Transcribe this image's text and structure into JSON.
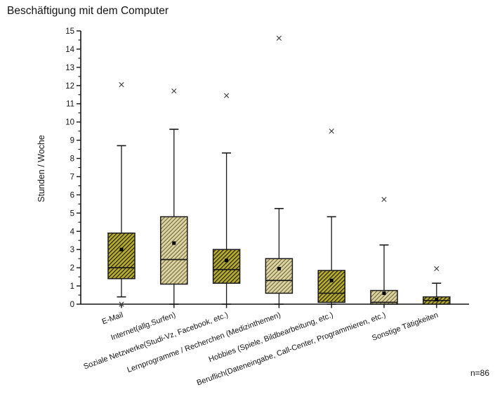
{
  "title": "Beschäftigung mit dem Computer",
  "n_label": "n=86",
  "chart_data": {
    "type": "boxplot",
    "title": "Beschäftigung mit dem Computer",
    "xlabel": "",
    "ylabel": "Stunden / Woche",
    "ylim": [
      0,
      15
    ],
    "y_major_step": 1,
    "y_minor_step": 0.5,
    "y_ticks": [
      0,
      1,
      2,
      3,
      4,
      5,
      6,
      7,
      8,
      9,
      10,
      11,
      12,
      13,
      14,
      15
    ],
    "grid": false,
    "legend": "none",
    "n_label": "n=86",
    "mean_marker": "filled-square-icon",
    "outlier_marker": "x-cross-icon",
    "categories": [
      "E-Mail",
      "Internet(allg.Surfen)",
      "Soziale Netzwerke(Studi-Vz, Facebook, etc.)",
      "Lernprogramme / Recherchen (Medizinthemen)",
      "Hobbies (Spiele, Bildbearbeitung, etc.)",
      "Beruflich(Dateneingabe, Call-Center, Programmieren, etc.)",
      "Sonstige Tätigkeiten"
    ],
    "series": [
      {
        "name": "E-Mail",
        "whisker_low": 0.4,
        "q1": 1.4,
        "median": 2.0,
        "q3": 3.9,
        "whisker_high": 8.7,
        "mean": 3.0,
        "outliers": [
          12.05,
          0
        ],
        "style": "dark"
      },
      {
        "name": "Internet(allg.Surfen)",
        "whisker_low": 0,
        "q1": 1.1,
        "median": 2.45,
        "q3": 4.8,
        "whisker_high": 9.6,
        "mean": 3.35,
        "outliers": [
          11.7
        ],
        "style": "light"
      },
      {
        "name": "Soziale Netzwerke(Studi-Vz, Facebook, etc.)",
        "whisker_low": 0,
        "q1": 1.15,
        "median": 1.9,
        "q3": 3.0,
        "whisker_high": 8.3,
        "mean": 2.4,
        "outliers": [
          11.45
        ],
        "style": "dark"
      },
      {
        "name": "Lernprogramme / Recherchen (Medizinthemen)",
        "whisker_low": 0,
        "q1": 0.6,
        "median": 1.3,
        "q3": 2.5,
        "whisker_high": 5.25,
        "mean": 1.95,
        "outliers": [
          14.6
        ],
        "style": "light"
      },
      {
        "name": "Hobbies (Spiele, Bildbearbeitung, etc.)",
        "whisker_low": 0,
        "q1": 0.1,
        "median": 0.6,
        "q3": 1.85,
        "whisker_high": 4.8,
        "mean": 1.3,
        "outliers": [
          9.5
        ],
        "style": "dark"
      },
      {
        "name": "Beruflich(Dateneingabe, Call-Center, Programmieren, etc.)",
        "whisker_low": 0,
        "q1": 0,
        "median": 0.1,
        "q3": 0.75,
        "whisker_high": 3.25,
        "mean": 0.6,
        "outliers": [
          5.75
        ],
        "style": "light"
      },
      {
        "name": "Sonstige Tätigkeiten",
        "whisker_low": 0,
        "q1": 0,
        "median": 0.2,
        "q3": 0.4,
        "whisker_high": 1.15,
        "mean": 0.25,
        "outliers": [
          1.95
        ],
        "style": "dark"
      }
    ],
    "colors": {
      "box_dark_fill": "#b6ad30",
      "box_dark_hatch": "#24200a",
      "box_light_fill": "#ddd4a2",
      "box_light_hatch": "#635c33",
      "stroke": "#1a1a1a",
      "axis": "#141414",
      "outlier": "#3c3c3c",
      "mean": "#000000",
      "background": "#ffffff"
    }
  }
}
